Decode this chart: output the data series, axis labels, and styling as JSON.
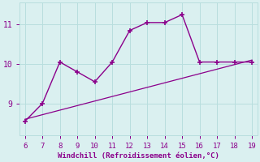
{
  "xlabel": "Windchill (Refroidissement éolien,°C)",
  "line1_x": [
    6,
    7,
    8,
    9,
    10,
    11,
    12,
    13,
    14,
    15,
    16,
    17,
    18,
    19
  ],
  "line1_y": [
    8.55,
    9.0,
    10.05,
    9.8,
    9.55,
    10.05,
    10.85,
    11.05,
    11.05,
    11.25,
    10.05,
    10.05,
    10.05,
    10.05
  ],
  "line2_x": [
    6,
    19
  ],
  "line2_y": [
    8.6,
    10.1
  ],
  "line_color": "#8b008b",
  "background_color": "#daf0f0",
  "grid_color": "#b8dede",
  "tick_color": "#8b008b",
  "label_color": "#8b008b",
  "xlim": [
    5.7,
    19.3
  ],
  "ylim": [
    8.2,
    11.55
  ],
  "yticks": [
    9,
    10,
    11
  ],
  "xticks": [
    6,
    7,
    8,
    9,
    10,
    11,
    12,
    13,
    14,
    15,
    16,
    17,
    18,
    19
  ],
  "markersize": 4,
  "linewidth": 1.0,
  "line2_linewidth": 0.9
}
